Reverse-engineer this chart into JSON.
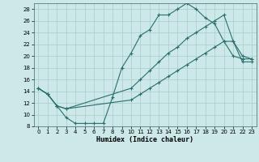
{
  "xlabel": "Humidex (Indice chaleur)",
  "bg_color": "#cce8e8",
  "grid_color": "#aacccc",
  "line_color": "#2a6e6e",
  "xlim": [
    -0.5,
    23.5
  ],
  "ylim": [
    8,
    29
  ],
  "xticks": [
    0,
    1,
    2,
    3,
    4,
    5,
    6,
    7,
    8,
    9,
    10,
    11,
    12,
    13,
    14,
    15,
    16,
    17,
    18,
    19,
    20,
    21,
    22,
    23
  ],
  "yticks": [
    8,
    10,
    12,
    14,
    16,
    18,
    20,
    22,
    24,
    26,
    28
  ],
  "curve1_x": [
    0,
    1,
    2,
    3,
    4,
    5,
    6,
    7,
    8,
    9,
    10,
    11,
    12,
    13,
    14,
    15,
    16,
    17,
    18,
    19,
    20,
    21,
    22,
    23
  ],
  "curve1_y": [
    14.5,
    13.5,
    11.5,
    9.5,
    8.5,
    8.5,
    8.5,
    8.5,
    13.0,
    18.0,
    20.5,
    23.5,
    24.5,
    27.0,
    27.0,
    28.0,
    29.0,
    28.0,
    26.5,
    25.5,
    22.5,
    20.0,
    19.5,
    19.5
  ],
  "curve2_x": [
    0,
    1,
    2,
    3,
    10,
    11,
    12,
    13,
    14,
    15,
    16,
    17,
    18,
    19,
    20,
    21,
    22,
    23
  ],
  "curve2_y": [
    14.5,
    13.5,
    11.5,
    11.0,
    14.5,
    16.0,
    17.5,
    19.0,
    20.5,
    21.5,
    23.0,
    24.0,
    25.0,
    26.0,
    27.0,
    22.5,
    20.0,
    19.5
  ],
  "curve3_x": [
    0,
    1,
    2,
    3,
    10,
    11,
    12,
    13,
    14,
    15,
    16,
    17,
    18,
    19,
    20,
    21,
    22,
    23
  ],
  "curve3_y": [
    14.5,
    13.5,
    11.5,
    11.0,
    12.5,
    13.5,
    14.5,
    15.5,
    16.5,
    17.5,
    18.5,
    19.5,
    20.5,
    21.5,
    22.5,
    22.5,
    19.0,
    19.0
  ]
}
